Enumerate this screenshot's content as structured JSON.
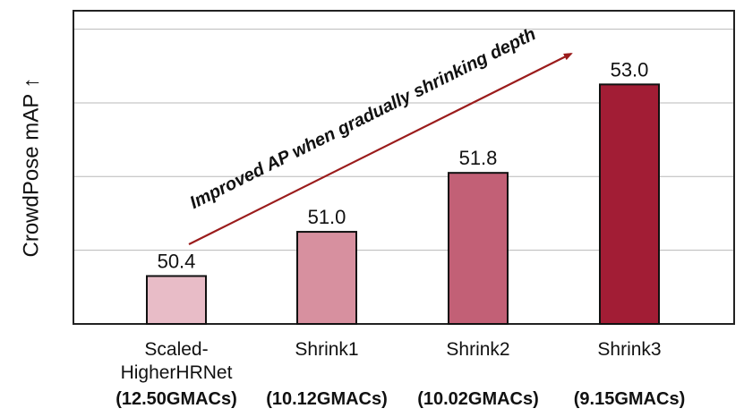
{
  "chart_data": {
    "type": "bar",
    "title": "",
    "xlabel": "",
    "ylabel": "CrowdPose mAP ↑",
    "ylim": [
      49.75,
      54.0
    ],
    "grid": true,
    "gridlines": [
      50.75,
      51.75,
      52.75,
      53.75
    ],
    "categories": [
      {
        "name": "Scaled-",
        "name2": "HigherHRNet",
        "gmacs": "(12.50GMACs)"
      },
      {
        "name": "Shrink1",
        "name2": "",
        "gmacs": "(10.12GMACs)"
      },
      {
        "name": "Shrink2",
        "name2": "",
        "gmacs": "(10.02GMACs)"
      },
      {
        "name": "Shrink3",
        "name2": "",
        "gmacs": "(9.15GMACs)"
      }
    ],
    "values": [
      50.4,
      51.0,
      51.8,
      53.0
    ],
    "value_labels": [
      "50.4",
      "51.0",
      "51.8",
      "53.0"
    ],
    "bar_colors": [
      "#e8bcc7",
      "#d7909f",
      "#c26076",
      "#a21d35"
    ],
    "annotation": "Improved AP when gradually shrinking depth",
    "arrow_color": "#9b1c1c"
  }
}
